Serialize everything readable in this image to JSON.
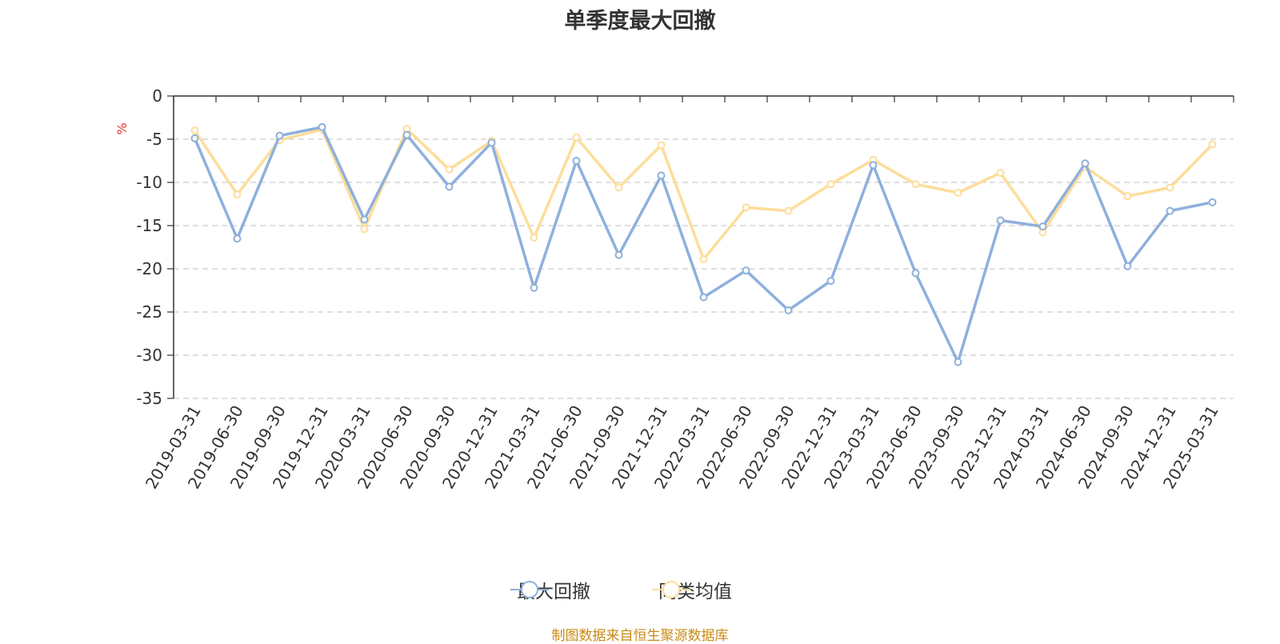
{
  "title": "单季度最大回撤",
  "footer": "制图数据来自恒生聚源数据库",
  "chart_data": {
    "type": "line",
    "title": "单季度最大回撤",
    "ylabel": "%",
    "ylim": [
      -35,
      0
    ],
    "yticks": [
      0,
      -5,
      -10,
      -15,
      -20,
      -25,
      -30,
      -35
    ],
    "grid": true,
    "legend_position": "bottom",
    "categories": [
      "2019-03-31",
      "2019-06-30",
      "2019-09-30",
      "2019-12-31",
      "2020-03-31",
      "2020-06-30",
      "2020-09-30",
      "2020-12-31",
      "2021-03-31",
      "2021-06-30",
      "2021-09-30",
      "2021-12-31",
      "2022-03-31",
      "2022-06-30",
      "2022-09-30",
      "2022-12-31",
      "2023-03-31",
      "2023-06-30",
      "2023-09-30",
      "2023-12-31",
      "2024-03-31",
      "2024-06-30",
      "2024-09-30",
      "2024-12-31",
      "2025-03-31"
    ],
    "series": [
      {
        "name": "最大回撤",
        "color": "#8eb0dc",
        "values": [
          -4.9,
          -16.5,
          -4.6,
          -3.6,
          -14.3,
          -4.5,
          -10.5,
          -5.4,
          -22.2,
          -7.5,
          -18.4,
          -9.2,
          -23.3,
          -20.2,
          -24.8,
          -21.4,
          -8.0,
          -20.5,
          -30.8,
          -14.4,
          -15.1,
          -7.8,
          -19.7,
          -13.3,
          -12.3
        ]
      },
      {
        "name": "同类均值",
        "color": "#fddd9a",
        "values": [
          -4.0,
          -11.4,
          -5.1,
          -3.9,
          -15.4,
          -3.8,
          -8.5,
          -5.2,
          -16.4,
          -4.8,
          -10.6,
          -5.7,
          -18.9,
          -12.9,
          -13.3,
          -10.2,
          -7.4,
          -10.2,
          -11.2,
          -8.9,
          -15.8,
          -8.2,
          -11.6,
          -10.6,
          -5.6
        ]
      }
    ]
  }
}
